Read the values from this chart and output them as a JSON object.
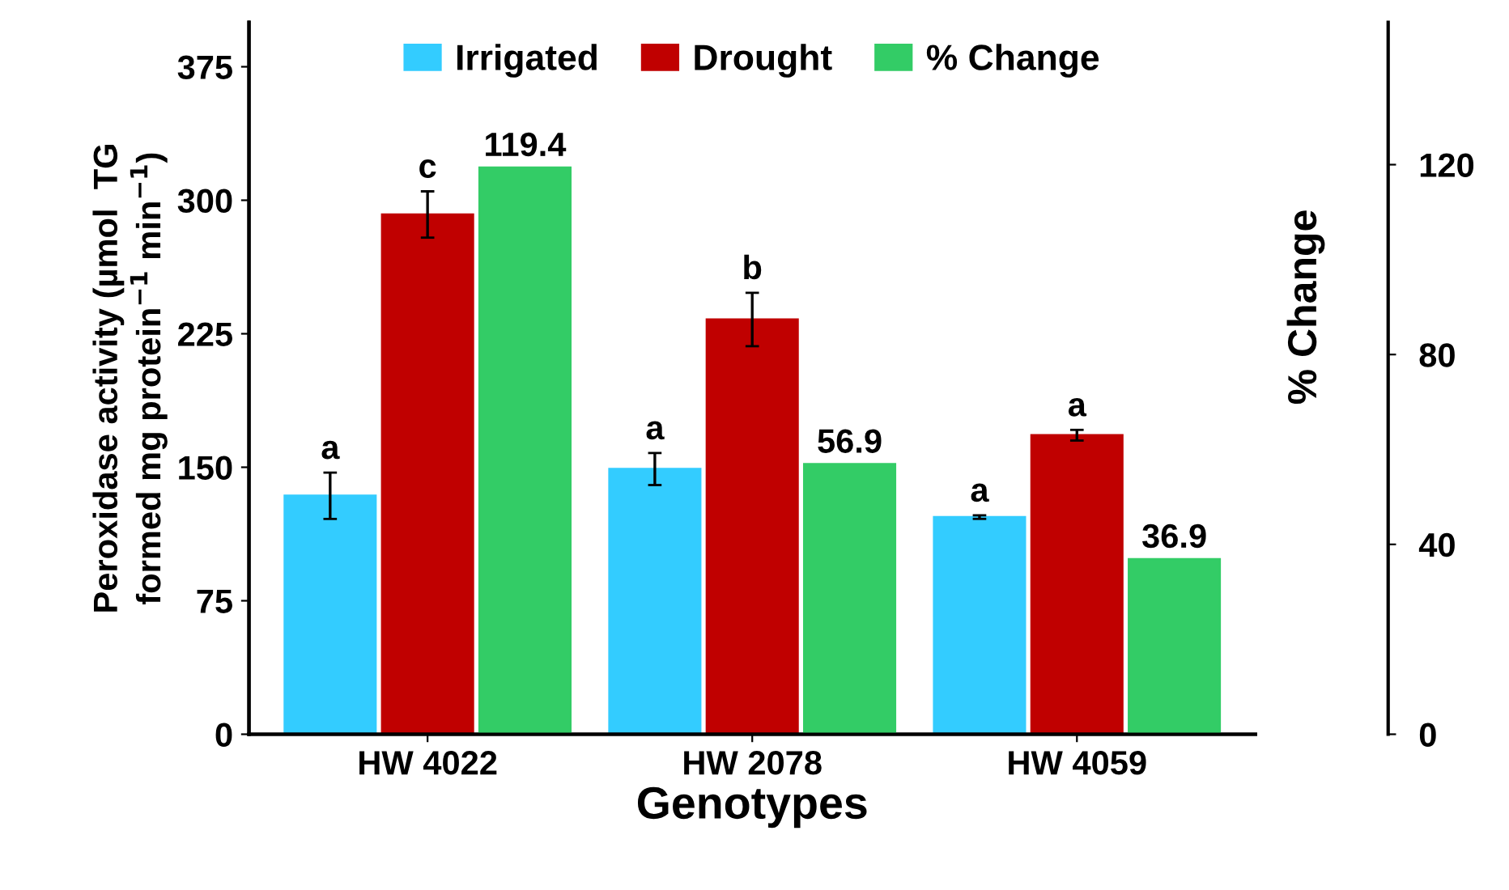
{
  "chart_data": {
    "type": "bar",
    "xlabel": "Genotypes",
    "ylabel": "Peroxidase activity (µmol  TG\nformed mg protein$^{−1}$ min$^{−1}$)",
    "y2label": "% Change",
    "categories": [
      "HW 4022",
      "HW 2078",
      "HW 4059"
    ],
    "series": [
      {
        "name": "Irrigated",
        "color": "#33ccff",
        "values": [
          134,
          149,
          122
        ],
        "errors": [
          13,
          9,
          1
        ]
      },
      {
        "name": "Drought",
        "color": "#c00000",
        "values": [
          292,
          233,
          168
        ],
        "errors": [
          13,
          15,
          3
        ]
      },
      {
        "name": "% Change",
        "color": "#33cc66",
        "values": [
          119.4,
          56.9,
          36.9
        ],
        "axis": "y2",
        "value_labels": [
          "119.4",
          "56.9",
          "36.9"
        ]
      }
    ],
    "ylim": [
      0,
      400
    ],
    "yticks": [
      0,
      75,
      150,
      225,
      300,
      375
    ],
    "y2lim": [
      0,
      150
    ],
    "y2ticks": [
      0,
      40,
      80,
      120
    ],
    "annotations": [
      "a",
      "c",
      "a",
      "b",
      "a",
      "a"
    ],
    "legend": "top",
    "grid": false
  }
}
